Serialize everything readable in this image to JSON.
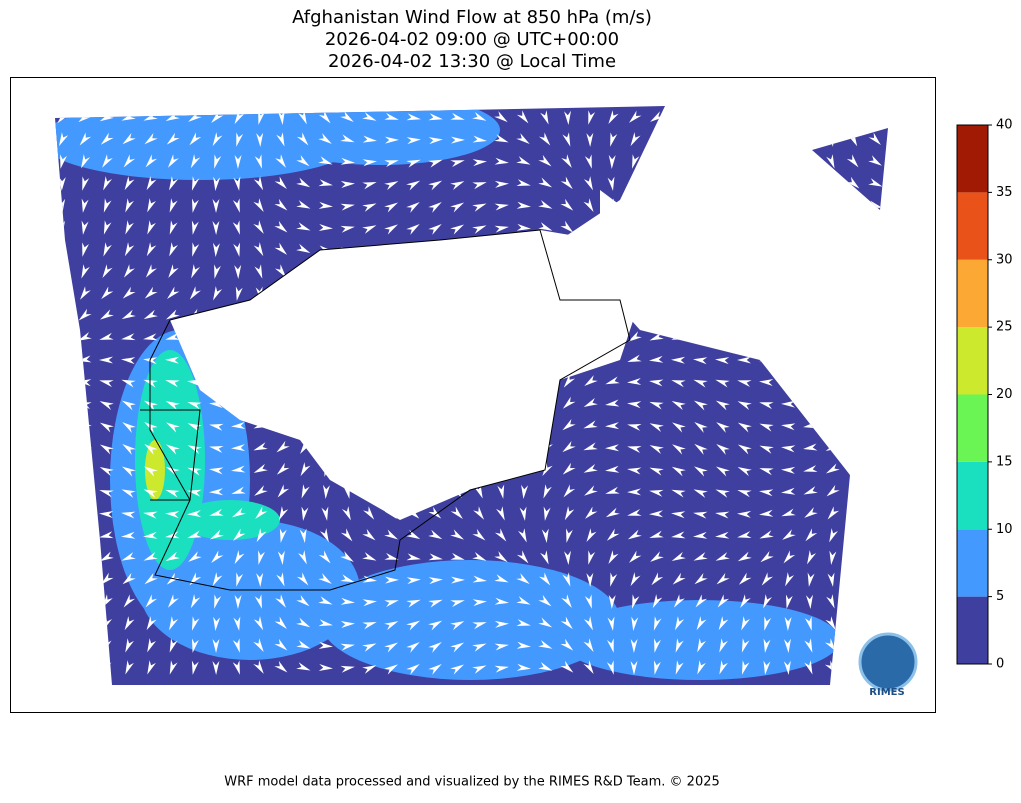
{
  "header": {
    "title": [
      "Afghanistan Wind Flow at 850 hPa (m/s)",
      "2026-04-02 09:00 @ UTC+00:00",
      "2026-04-02 13:30 @ Local Time"
    ]
  },
  "colorbar": {
    "lim": [
      0,
      40
    ],
    "ticks": [
      0,
      5,
      10,
      15,
      20,
      25,
      30,
      35,
      40
    ],
    "colors": [
      "#3f3f9f",
      "#4499ff",
      "#1be0bf",
      "#6bf554",
      "#cde92e",
      "#fca835",
      "#e9531a",
      "#a11a04"
    ]
  },
  "logo": {
    "label": "RIMES"
  },
  "footer": "WRF model data processed and visualized by the RIMES R&D Team. © 2025"
}
